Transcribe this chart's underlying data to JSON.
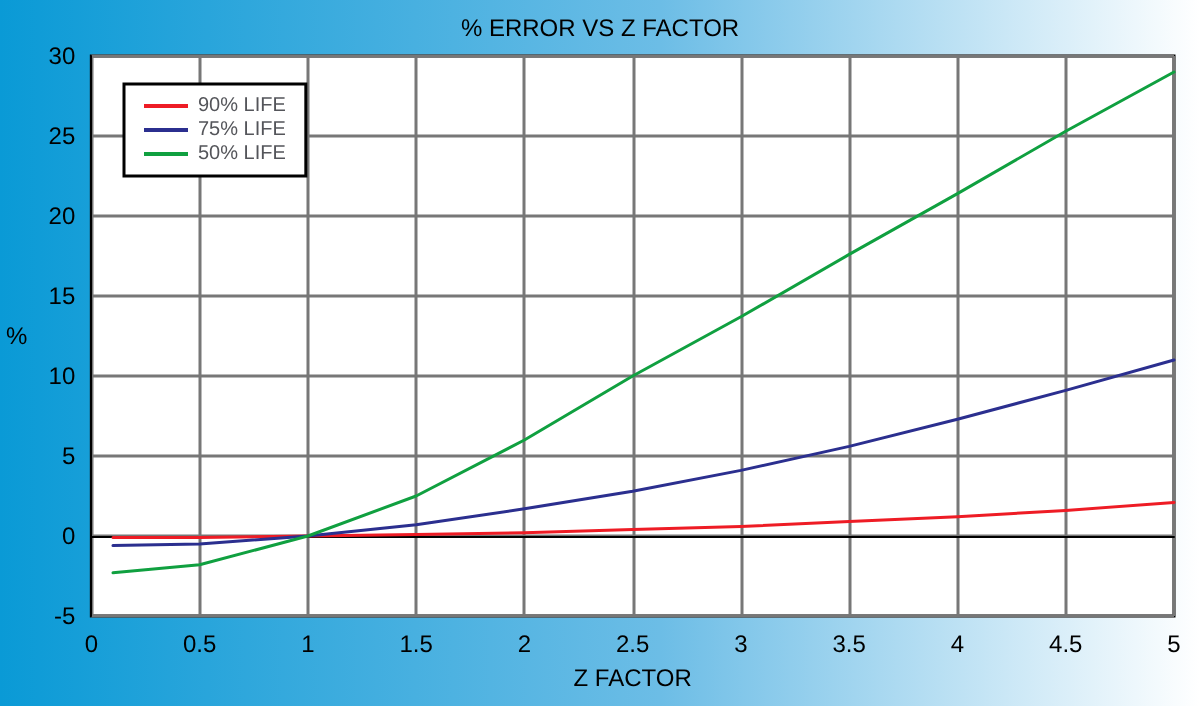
{
  "chart_data": {
    "type": "line",
    "title": "% ERROR VS Z FACTOR",
    "xlabel": "Z FACTOR",
    "ylabel": "%",
    "x": [
      0.1,
      0.5,
      1,
      1.5,
      2,
      2.5,
      3,
      3.5,
      4,
      4.5,
      5
    ],
    "series": [
      {
        "name": "90% LIFE",
        "color": "#ee1c25",
        "values": [
          -0.1,
          -0.1,
          0,
          0.1,
          0.2,
          0.4,
          0.6,
          0.9,
          1.2,
          1.6,
          2.1
        ]
      },
      {
        "name": "75% LIFE",
        "color": "#2b2f8f",
        "values": [
          -0.6,
          -0.5,
          0,
          0.7,
          1.7,
          2.8,
          4.1,
          5.6,
          7.3,
          9.1,
          11
        ]
      },
      {
        "name": "50% LIFE",
        "color": "#10a040",
        "values": [
          -2.3,
          -1.8,
          0,
          2.5,
          6,
          10,
          13.7,
          17.6,
          21.4,
          25.3,
          29
        ]
      }
    ],
    "xlim": [
      0,
      5
    ],
    "xticks": [
      0,
      0.5,
      1,
      1.5,
      2,
      2.5,
      3,
      3.5,
      4,
      4.5,
      5
    ],
    "ylim": [
      -5,
      30
    ],
    "yticks": [
      -5,
      0,
      5,
      10,
      15,
      20,
      25,
      30
    ],
    "grid": true,
    "legend": "top left",
    "marker": "none",
    "line_style": "solid"
  }
}
